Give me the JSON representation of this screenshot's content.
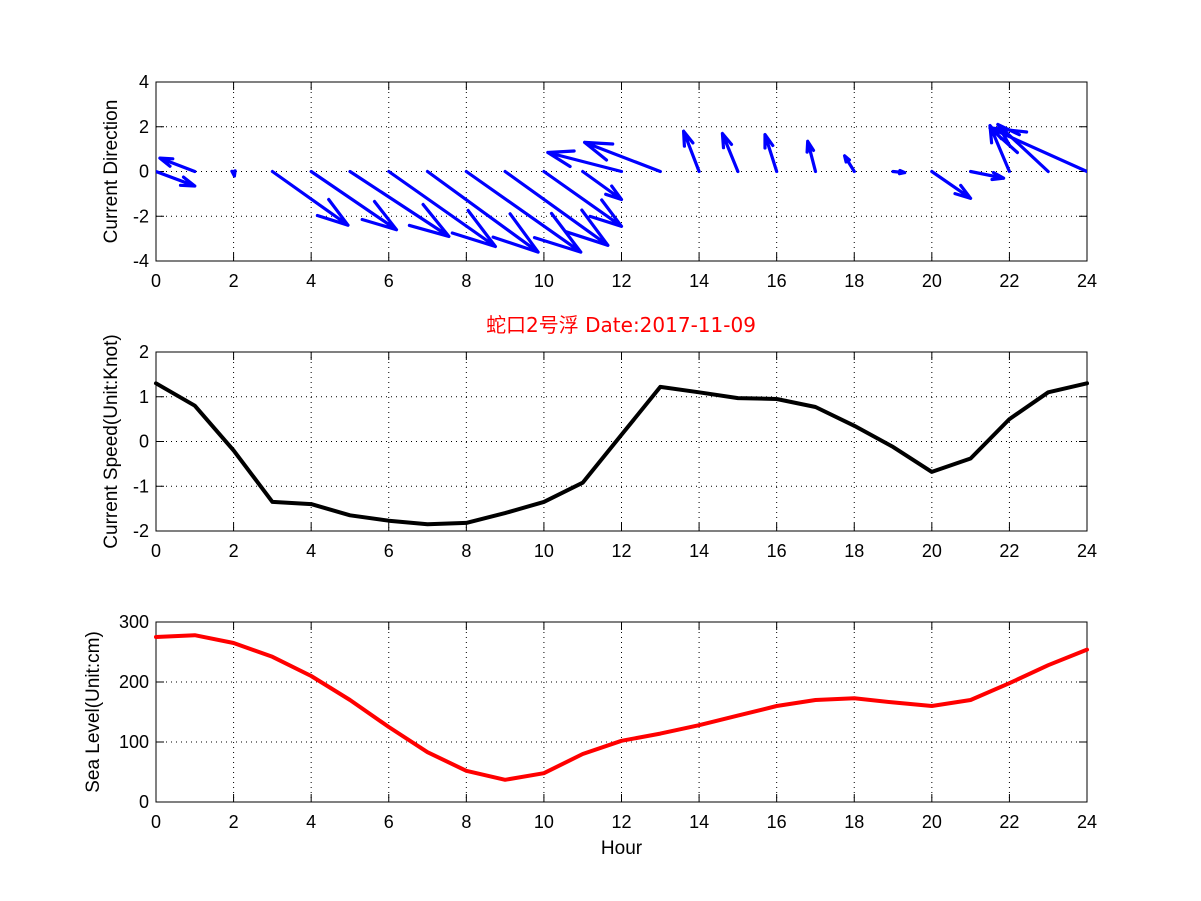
{
  "chart_data": [
    {
      "type": "quiver",
      "ylabel": "Current Direction",
      "xlim": [
        0,
        24
      ],
      "ylim": [
        -4,
        4
      ],
      "xticks": [
        0,
        2,
        4,
        6,
        8,
        10,
        12,
        14,
        16,
        18,
        20,
        22,
        24
      ],
      "yticks": [
        -4,
        -2,
        0,
        2,
        4
      ],
      "grid": true,
      "color": "#0000ff",
      "arrows": [
        {
          "x": 0,
          "u": 1.0,
          "v": -0.65
        },
        {
          "x": 1,
          "u": -0.9,
          "v": 0.6
        },
        {
          "x": 2,
          "u": 0.02,
          "v": -0.2
        },
        {
          "x": 3,
          "u": 1.95,
          "v": -2.4
        },
        {
          "x": 4,
          "u": 2.2,
          "v": -2.6
        },
        {
          "x": 5,
          "u": 2.55,
          "v": -2.9
        },
        {
          "x": 6,
          "u": 2.75,
          "v": -3.35
        },
        {
          "x": 7,
          "u": 2.85,
          "v": -3.6
        },
        {
          "x": 8,
          "u": 2.95,
          "v": -3.6
        },
        {
          "x": 9,
          "u": 2.65,
          "v": -3.3
        },
        {
          "x": 10,
          "u": 2.0,
          "v": -2.45
        },
        {
          "x": 11,
          "u": 1.0,
          "v": -1.25
        },
        {
          "x": 12,
          "u": -1.9,
          "v": 0.85
        },
        {
          "x": 13,
          "u": -1.95,
          "v": 1.3
        },
        {
          "x": 14,
          "u": -0.4,
          "v": 1.8
        },
        {
          "x": 15,
          "u": -0.4,
          "v": 1.7
        },
        {
          "x": 16,
          "u": -0.3,
          "v": 1.65
        },
        {
          "x": 17,
          "u": -0.2,
          "v": 1.35
        },
        {
          "x": 18,
          "u": -0.25,
          "v": 0.7
        },
        {
          "x": 19,
          "u": 0.3,
          "v": -0.05
        },
        {
          "x": 20,
          "u": 1.0,
          "v": -1.2
        },
        {
          "x": 21,
          "u": 0.85,
          "v": -0.3
        },
        {
          "x": 22,
          "u": -0.5,
          "v": 2.05
        },
        {
          "x": 23,
          "u": -1.3,
          "v": 2.1
        },
        {
          "x": 24,
          "u": -2.5,
          "v": 1.95
        }
      ]
    },
    {
      "type": "line",
      "ylabel": "Current Speed(Unit:Knot)",
      "xlim": [
        0,
        24
      ],
      "ylim": [
        -2,
        2
      ],
      "xticks": [
        0,
        2,
        4,
        6,
        8,
        10,
        12,
        14,
        16,
        18,
        20,
        22,
        24
      ],
      "yticks": [
        -2,
        -1,
        0,
        1,
        2
      ],
      "grid": true,
      "color": "#000000",
      "x": [
        0,
        1,
        2,
        3,
        4,
        5,
        6,
        7,
        8,
        9,
        10,
        11,
        12,
        13,
        14,
        15,
        16,
        17,
        18,
        19,
        20,
        21,
        22,
        23,
        24
      ],
      "y": [
        1.3,
        0.8,
        -0.2,
        -1.35,
        -1.4,
        -1.65,
        -1.77,
        -1.85,
        -1.82,
        -1.6,
        -1.35,
        -0.92,
        0.15,
        1.22,
        1.1,
        0.97,
        0.95,
        0.77,
        0.35,
        -0.12,
        -0.68,
        -0.38,
        0.5,
        1.1,
        1.3
      ]
    },
    {
      "type": "line",
      "ylabel": "Sea Level(Unit:cm)",
      "xlabel": "Hour",
      "xlim": [
        0,
        24
      ],
      "ylim": [
        0,
        300
      ],
      "xticks": [
        0,
        2,
        4,
        6,
        8,
        10,
        12,
        14,
        16,
        18,
        20,
        22,
        24
      ],
      "yticks": [
        0,
        100,
        200,
        300
      ],
      "grid": true,
      "color": "#ff0000",
      "x": [
        0,
        1,
        2,
        3,
        4,
        5,
        6,
        7,
        8,
        9,
        10,
        11,
        12,
        13,
        14,
        15,
        16,
        17,
        18,
        19,
        20,
        21,
        22,
        23,
        24
      ],
      "y": [
        275,
        278,
        265,
        242,
        210,
        170,
        125,
        83,
        52,
        37,
        48,
        80,
        102,
        114,
        128,
        144,
        160,
        170,
        173,
        166,
        160,
        170,
        198,
        228,
        254
      ]
    }
  ],
  "title": "蛇口2号浮   Date:2017-11-09",
  "title_color": "#ff0000"
}
